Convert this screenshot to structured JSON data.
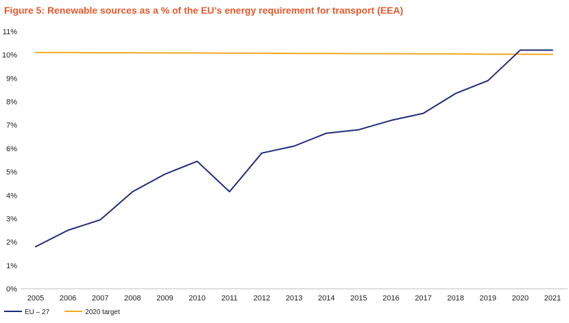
{
  "chart_data": {
    "type": "line",
    "title": "Figure 5: Renewable sources as a % of the EU’s energy requirement for transport (EEA)",
    "xlabel": "",
    "ylabel": "",
    "x": [
      "2005",
      "2006",
      "2007",
      "2008",
      "2009",
      "2010",
      "2011",
      "2012",
      "2013",
      "2014",
      "2015",
      "2016",
      "2017",
      "2018",
      "2019",
      "2020",
      "2021"
    ],
    "ylim": [
      0,
      11
    ],
    "yticks": [
      "0%",
      "1%",
      "2%",
      "3%",
      "4%",
      "5%",
      "6%",
      "7%",
      "8%",
      "9%",
      "10%",
      "11%"
    ],
    "grid": false,
    "legend_position": "bottom-left",
    "series": [
      {
        "name": "EU – 27",
        "color": "#1e2a78",
        "values": [
          1.8,
          2.5,
          2.95,
          4.15,
          4.9,
          5.45,
          4.15,
          5.8,
          6.1,
          6.65,
          6.8,
          7.2,
          7.5,
          8.35,
          8.9,
          10.2,
          10.2
        ]
      },
      {
        "name": "2020 target",
        "color": "#f2a81d",
        "values": [
          10.1,
          10.1,
          10.09,
          10.09,
          10.08,
          10.08,
          10.07,
          10.07,
          10.06,
          10.06,
          10.05,
          10.05,
          10.04,
          10.04,
          10.03,
          10.03,
          10.02
        ]
      }
    ]
  }
}
